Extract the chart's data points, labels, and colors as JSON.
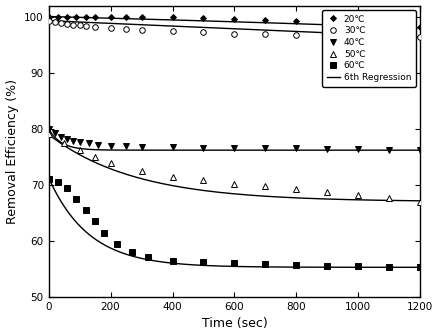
{
  "xlabel": "Time (sec)",
  "ylabel": "Removal Efficiency (%)",
  "xlim": [
    0,
    1200
  ],
  "ylim": [
    50,
    102
  ],
  "yticks": [
    50,
    60,
    70,
    80,
    90,
    100
  ],
  "xticks": [
    0,
    200,
    400,
    600,
    800,
    1000,
    1200
  ],
  "series_20C": {
    "label": "20℃",
    "marker": "D",
    "marker_face": "black",
    "marker_size": 3,
    "x": [
      0,
      30,
      60,
      90,
      120,
      150,
      200,
      250,
      300,
      400,
      500,
      600,
      700,
      800,
      900,
      1000,
      1100,
      1200
    ],
    "y": [
      100,
      100,
      100,
      100,
      100,
      100,
      100,
      100,
      100,
      99.9,
      99.8,
      99.6,
      99.4,
      99.2,
      99.0,
      98.8,
      98.5,
      98.2
    ]
  },
  "series_30C": {
    "label": "30℃",
    "marker": "o",
    "marker_face": "white",
    "marker_size": 4,
    "x": [
      0,
      20,
      40,
      60,
      80,
      100,
      120,
      150,
      200,
      250,
      300,
      400,
      500,
      600,
      700,
      800,
      900,
      1000,
      1100,
      1200
    ],
    "y": [
      99.2,
      99.0,
      98.8,
      98.7,
      98.6,
      98.5,
      98.4,
      98.2,
      98.0,
      97.8,
      97.7,
      97.4,
      97.2,
      97.0,
      96.9,
      96.8,
      96.7,
      96.6,
      96.5,
      96.4
    ]
  },
  "series_40C": {
    "label": "40℃",
    "marker": "v",
    "marker_face": "black",
    "marker_size": 4,
    "x": [
      0,
      20,
      40,
      60,
      80,
      100,
      130,
      160,
      200,
      250,
      300,
      400,
      500,
      600,
      700,
      800,
      900,
      1000,
      1100,
      1200
    ],
    "y": [
      80,
      79.2,
      78.6,
      78.2,
      77.9,
      77.7,
      77.4,
      77.2,
      77.0,
      76.9,
      76.8,
      76.7,
      76.6,
      76.6,
      76.5,
      76.5,
      76.4,
      76.4,
      76.3,
      76.2
    ]
  },
  "series_50C": {
    "label": "50℃",
    "marker": "^",
    "marker_face": "white",
    "marker_size": 4,
    "x": [
      0,
      50,
      100,
      150,
      200,
      300,
      400,
      500,
      600,
      700,
      800,
      900,
      1000,
      1100,
      1200
    ],
    "y": [
      79.0,
      77.5,
      76.2,
      75.0,
      74.0,
      72.5,
      71.5,
      70.8,
      70.2,
      69.8,
      69.2,
      68.7,
      68.2,
      67.6,
      67.0
    ]
  },
  "series_60C": {
    "label": "60℃",
    "marker": "s",
    "marker_face": "black",
    "marker_size": 4,
    "x": [
      0,
      30,
      60,
      90,
      120,
      150,
      180,
      220,
      270,
      320,
      400,
      500,
      600,
      700,
      800,
      900,
      1000,
      1100,
      1200
    ],
    "y": [
      71.0,
      70.5,
      69.5,
      67.5,
      65.5,
      63.5,
      61.5,
      59.5,
      58.0,
      57.2,
      56.5,
      56.2,
      56.0,
      55.9,
      55.7,
      55.6,
      55.5,
      55.4,
      55.3
    ]
  },
  "legend_fontsize": 6.5,
  "axis_fontsize": 9,
  "tick_fontsize": 7.5
}
